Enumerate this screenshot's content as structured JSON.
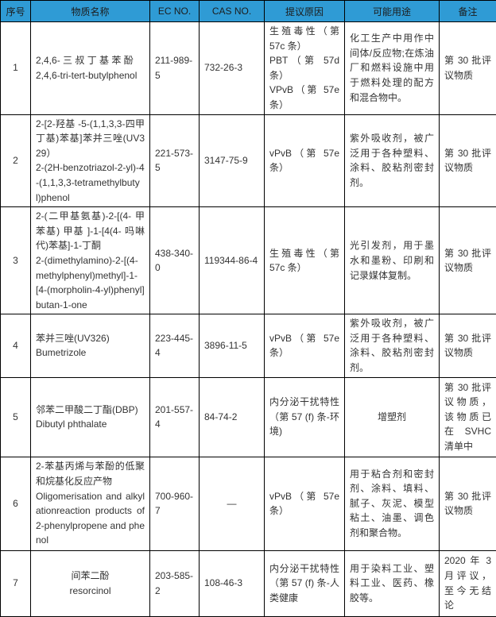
{
  "colors": {
    "header_bg": "#2F9BD5",
    "border": "#000000",
    "body_text": "#333333"
  },
  "table": {
    "headers": [
      "序号",
      "物质名称",
      "EC NO.",
      "CAS NO.",
      "提议原因",
      "可能用途",
      "备注"
    ],
    "rows": [
      {
        "no": "1",
        "name": "2,4,6- 三 叔 丁 基 苯 酚\n2,4,6-tri-tert-butylphenol",
        "ec": "211-989-5",
        "cas": "732-26-3",
        "reason": "生殖毒性（第 57c 条）\nPBT（第 57d 条）\nVPvB（第 57e 条）",
        "use": "化工生产中用作中间体/反应物;在炼油厂和燃料设施中用于燃料处理的配方和混合物中。",
        "note": "第 30 批评议物质"
      },
      {
        "no": "2",
        "name": "2-[2-羟基 -5-(1,1,3,3-四甲丁基)苯基]苯并三唑(UV329）\n2-(2H-benzotriazol-2-yl)-4-(1,1,3,3-tetramethylbutyl)phenol",
        "ec": "221-573-5",
        "cas": "3147-75-9",
        "reason": "vPvB（第 57e 条）",
        "use": "紫外吸收剂，被广泛用于各种塑料、涂料、胶粘剂密封剂。",
        "note": "第 30 批评议物质"
      },
      {
        "no": "3",
        "name": "2-(二甲基氨基)-2-[(4- 甲苯基) 甲基 ]-1-[4(4- 吗啉代)苯基]-1-丁酮\n2-(dimethylamino)-2-[(4-methylphenyl)methyl]-1-[4-(morpholin-4-yl)phenyl]butan-1-one",
        "ec": "438-340-0",
        "cas": "119344-86-4",
        "reason": "生殖毒性（第 57c 条）",
        "use": "光引发剂，用于墨水和墨粉、印刷和记录媒体复制。",
        "note": "第 30 批评议物质"
      },
      {
        "no": "4",
        "name": "苯并三唑(UV326)\nBumetrizole",
        "ec": "223-445-4",
        "cas": "3896-11-5",
        "reason": "vPvB（第 57e 条）",
        "use": "紫外吸收剂，被广泛用于各种塑料、涂料、胶粘剂密封剂。",
        "note": "第 30 批评议物质"
      },
      {
        "no": "5",
        "name": "邻苯二甲酸二丁酯(DBP)\nDibutyl phthalate",
        "ec": "201-557-4",
        "cas": "84-74-2",
        "reason": "内分泌干扰特性（第 57 (f) 条-环境)",
        "use": "增塑剂",
        "note": "第 30 批评议物质，该物质已在 SVHC 清单中"
      },
      {
        "no": "6",
        "name": "2-苯基丙烯与苯酚的低聚和烷基化反应产物\nOligomerisation and alkylationreaction products of 2-phenylpropene and phenol",
        "ec": "700-960-7",
        "cas": "—",
        "reason": "vPvB（第 57e 条）",
        "use": "用于粘合剂和密封剂、涂料、填料、腻子、灰泥、模型粘土、油墨、调色剂和聚合物。",
        "note": "第 30 批评议物质"
      },
      {
        "no": "7",
        "name": "间苯二酚\nresorcinol",
        "ec": "203-585-2",
        "cas": "108-46-3",
        "reason": "内分泌干扰特性（第 57 (f) 条-人类健康",
        "use": "用于染料工业、塑料工业、医药、橡胶等。",
        "note": "2020 年 3 月评议，至今无结论"
      }
    ]
  }
}
